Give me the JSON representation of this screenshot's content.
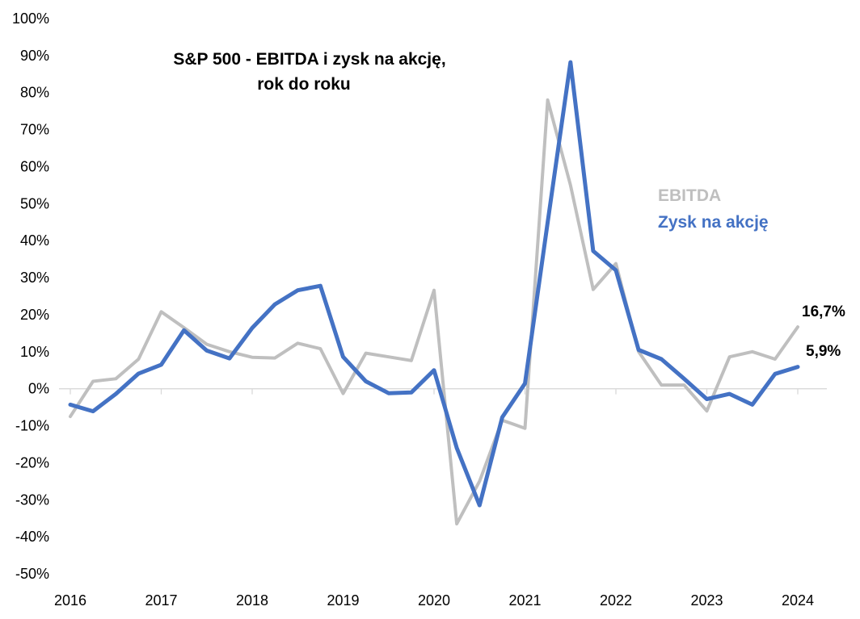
{
  "chart_data": {
    "type": "line",
    "title": "S&P 500 - EBITDA i zysk na akcję,",
    "title_line2": "rok do roku",
    "xlabel": "",
    "ylabel": "",
    "ylim": [
      -50,
      100
    ],
    "y_ticks": [
      "100%",
      "90%",
      "80%",
      "70%",
      "60%",
      "50%",
      "40%",
      "30%",
      "20%",
      "10%",
      "0%",
      "-10%",
      "-20%",
      "-30%",
      "-40%",
      "-50%"
    ],
    "x_ticks": [
      "2016",
      "2017",
      "2018",
      "2019",
      "2020",
      "2021",
      "2022",
      "2023",
      "2024"
    ],
    "x_start": 2016,
    "x_end": 2024,
    "points_per_year": 4,
    "series": [
      {
        "name": "EBITDA",
        "color": "#BFBFBF",
        "values": [
          -7.5,
          2,
          2.7,
          8,
          20.8,
          16.5,
          12,
          10,
          8.5,
          8.3,
          12.3,
          10.8,
          -1.3,
          9.6,
          8.6,
          7.6,
          26.6,
          -36.5,
          -25,
          -8.5,
          -10.7,
          78,
          55,
          26.8,
          33.8,
          10,
          1,
          1,
          -6,
          8.6,
          10,
          8,
          16.7
        ],
        "end_label": "16,7%"
      },
      {
        "name": "Zysk na akcję",
        "color": "#4472C4",
        "values": [
          -4.3,
          -6.1,
          -1.4,
          4.1,
          6.5,
          15.8,
          10.3,
          8.2,
          16.4,
          22.8,
          26.6,
          27.8,
          8.6,
          2,
          -1.2,
          -1,
          5,
          -16,
          -31.5,
          -7.7,
          1.4,
          45,
          88.2,
          37.2,
          32,
          10.5,
          8,
          2.7,
          -2.8,
          -1.4,
          -4.3,
          4,
          5.9
        ],
        "end_label": "5,9%"
      }
    ],
    "legend": [
      "EBITDA",
      "Zysk na akcję"
    ],
    "legend_position": "upper-right",
    "grid": false
  }
}
